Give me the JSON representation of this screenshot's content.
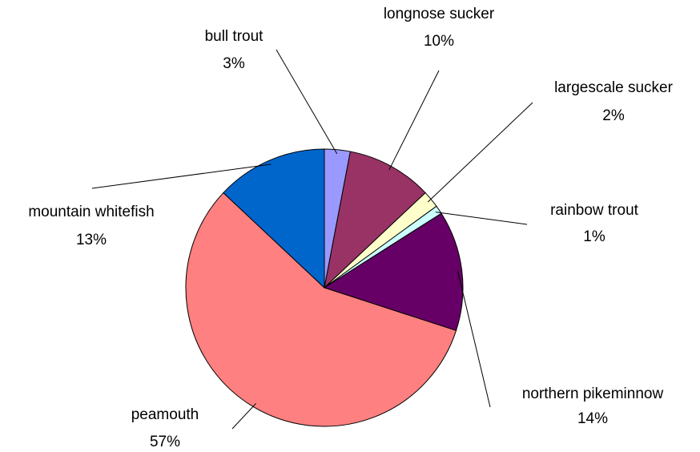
{
  "chart_data": {
    "type": "pie",
    "categories": [
      "bull trout",
      "longnose sucker",
      "largescale sucker",
      "rainbow trout",
      "northern pikeminnow",
      "peamouth",
      "mountain whitefish"
    ],
    "values": [
      3,
      10,
      2,
      1,
      14,
      57,
      13
    ],
    "value_labels": [
      "3%",
      "10%",
      "2%",
      "1%",
      "14%",
      "57%",
      "13%"
    ],
    "colors": [
      "#9999ff",
      "#993366",
      "#ffffcc",
      "#ccffff",
      "#660066",
      "#ff8080",
      "#0066cc"
    ]
  }
}
